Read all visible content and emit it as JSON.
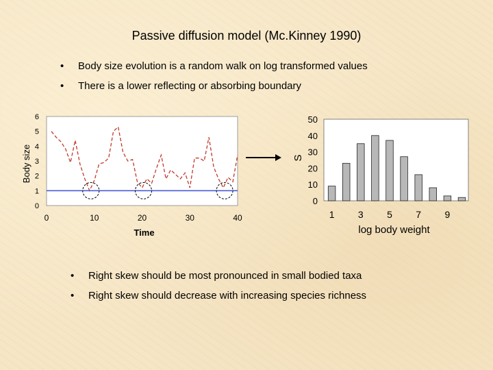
{
  "slide": {
    "title": "Passive diffusion model (Mc.Kinney 1990)",
    "bullet_char": "•",
    "top_bullets": [
      "Body size evolution is a random walk on log transformed values",
      "There is a lower reflecting or absorbing boundary"
    ],
    "bottom_bullets": [
      "Right skew should be most pronounced in small bodied taxa",
      "Right skew should decrease with increasing species richness"
    ]
  },
  "colors": {
    "walk_line": "#c0392b",
    "boundary_line": "#4a5cd6",
    "bar_fill": "#b8b8b8",
    "plot_bg": "#ffffff"
  },
  "chart_data": [
    {
      "type": "line",
      "xlabel": "Time",
      "ylabel": "Body size",
      "xlim": [
        0,
        40
      ],
      "ylim": [
        0,
        6
      ],
      "xticks": [
        0,
        10,
        20,
        30,
        40
      ],
      "yticks": [
        0,
        1,
        2,
        3,
        4,
        5,
        6
      ],
      "series": [
        {
          "style": "dashed",
          "x": [
            1,
            2,
            3,
            4,
            5,
            6,
            7,
            8,
            9,
            10,
            11,
            12,
            13,
            14,
            15,
            16,
            17,
            18,
            19,
            20,
            21,
            22,
            23,
            24,
            25,
            26,
            27,
            28,
            29,
            30,
            31,
            32,
            33,
            34,
            35,
            36,
            37,
            38,
            39,
            40
          ],
          "y": [
            5.0,
            4.6,
            4.3,
            3.8,
            2.9,
            4.4,
            2.8,
            1.8,
            1.0,
            1.7,
            2.8,
            2.9,
            3.2,
            5.0,
            5.3,
            3.6,
            3.0,
            3.1,
            1.6,
            1.2,
            1.8,
            1.5,
            2.5,
            3.4,
            1.8,
            2.4,
            2.1,
            1.8,
            2.2,
            1.2,
            3.2,
            3.2,
            3.0,
            4.6,
            2.6,
            1.8,
            1.2,
            1.9,
            1.6,
            3.4
          ]
        },
        {
          "style": "solid",
          "x": [
            0,
            40
          ],
          "y": [
            1,
            1
          ]
        }
      ],
      "annotations": [
        {
          "shape": "circle",
          "x": 9,
          "y": 1.0
        },
        {
          "shape": "circle",
          "x": 20,
          "y": 1.0
        },
        {
          "shape": "circle",
          "x": 37,
          "y": 1.0
        }
      ]
    },
    {
      "type": "bar",
      "xlabel": "log body weight",
      "ylabel": "S",
      "ylim": [
        0,
        50
      ],
      "yticks": [
        0,
        10,
        20,
        30,
        40,
        50
      ],
      "xtick_labels": [
        "1",
        "3",
        "5",
        "7",
        "9"
      ],
      "categories": [
        "1",
        "2",
        "3",
        "4",
        "5",
        "6",
        "7",
        "8",
        "9",
        "10"
      ],
      "values": [
        9,
        23,
        35,
        40,
        37,
        27,
        16,
        8,
        3,
        2
      ]
    }
  ]
}
